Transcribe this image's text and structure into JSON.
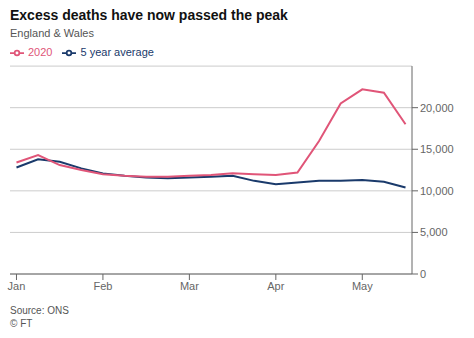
{
  "chart_data": {
    "type": "line",
    "title": "Excess deaths have now passed the peak",
    "subtitle": "England & Wales",
    "source": "Source: ONS\n© FT",
    "x": [
      0,
      1,
      2,
      3,
      4,
      5,
      6,
      7,
      8,
      9,
      10,
      11,
      12,
      13,
      14,
      15,
      16,
      17,
      18
    ],
    "series": [
      {
        "name": "5 year average",
        "color": "#1a3a6b",
        "values": [
          12800,
          13800,
          13500,
          12700,
          12100,
          11800,
          11600,
          11500,
          11600,
          11700,
          11800,
          11200,
          10800,
          11000,
          11200,
          11200,
          11300,
          11100,
          10400
        ]
      },
      {
        "name": "2020",
        "color": "#e05578",
        "values": [
          13400,
          14300,
          13100,
          12500,
          12000,
          11800,
          11700,
          11700,
          11800,
          11900,
          12100,
          12000,
          11900,
          12200,
          16000,
          20500,
          22200,
          21800,
          18000
        ]
      }
    ],
    "xlim": [
      -0.3,
      18.3
    ],
    "xticks": [
      {
        "value": 0,
        "label": "Jan"
      },
      {
        "value": 4,
        "label": "Feb"
      },
      {
        "value": 8,
        "label": "Mar"
      },
      {
        "value": 12,
        "label": "Apr"
      },
      {
        "value": 16,
        "label": "May"
      }
    ],
    "ylim": [
      0,
      25000
    ],
    "yticks": [
      0,
      {
        "value": 5000,
        "label": "5,000"
      },
      {
        "value": 10000,
        "label": "10,000"
      },
      {
        "value": 15000,
        "label": "15,000"
      },
      {
        "value": 20000,
        "label": "20,000"
      }
    ],
    "grid": true,
    "legend": "upper left"
  }
}
